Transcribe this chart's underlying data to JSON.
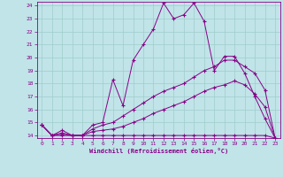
{
  "xlabel": "Windchill (Refroidissement éolien,°C)",
  "background_color": "#c0e4e8",
  "grid_color": "#a0cccc",
  "line_color": "#880088",
  "xlim": [
    -0.5,
    23.5
  ],
  "ylim": [
    13.8,
    24.3
  ],
  "yticks": [
    14,
    15,
    16,
    17,
    18,
    19,
    20,
    21,
    22,
    23,
    24
  ],
  "xticks": [
    0,
    1,
    2,
    3,
    4,
    5,
    6,
    7,
    8,
    9,
    10,
    11,
    12,
    13,
    14,
    15,
    16,
    17,
    18,
    19,
    20,
    21,
    22,
    23
  ],
  "series": [
    {
      "x": [
        0,
        1,
        2,
        3,
        4,
        5,
        6,
        7,
        8,
        9,
        10,
        11,
        12,
        13,
        14,
        15,
        16,
        17,
        18,
        19,
        20,
        21,
        22,
        23
      ],
      "y": [
        14.8,
        14.0,
        14.4,
        14.0,
        14.0,
        14.8,
        15.0,
        18.3,
        16.3,
        19.8,
        21.0,
        22.2,
        24.2,
        23.0,
        23.3,
        24.2,
        22.8,
        19.0,
        20.1,
        20.1,
        18.8,
        17.0,
        15.3,
        13.8
      ]
    },
    {
      "x": [
        0,
        1,
        2,
        3,
        4,
        5,
        6,
        7,
        8,
        9,
        10,
        11,
        12,
        13,
        14,
        15,
        16,
        17,
        18,
        19,
        20,
        21,
        22,
        23
      ],
      "y": [
        14.8,
        14.0,
        14.2,
        14.0,
        14.0,
        14.5,
        14.8,
        15.0,
        15.5,
        16.0,
        16.5,
        17.0,
        17.4,
        17.7,
        18.0,
        18.5,
        19.0,
        19.3,
        19.8,
        19.8,
        19.3,
        18.8,
        17.5,
        13.8
      ]
    },
    {
      "x": [
        0,
        1,
        2,
        3,
        4,
        5,
        6,
        7,
        8,
        9,
        10,
        11,
        12,
        13,
        14,
        15,
        16,
        17,
        18,
        19,
        20,
        21,
        22,
        23
      ],
      "y": [
        14.8,
        14.0,
        14.1,
        14.0,
        14.0,
        14.3,
        14.4,
        14.5,
        14.7,
        15.0,
        15.3,
        15.7,
        16.0,
        16.3,
        16.6,
        17.0,
        17.4,
        17.7,
        17.9,
        18.2,
        17.9,
        17.2,
        16.2,
        13.8
      ]
    },
    {
      "x": [
        0,
        1,
        2,
        3,
        4,
        5,
        6,
        7,
        8,
        9,
        10,
        11,
        12,
        13,
        14,
        15,
        16,
        17,
        18,
        19,
        20,
        21,
        22,
        23
      ],
      "y": [
        14.8,
        14.0,
        14.0,
        14.0,
        14.0,
        14.0,
        14.0,
        14.0,
        14.0,
        14.0,
        14.0,
        14.0,
        14.0,
        14.0,
        14.0,
        14.0,
        14.0,
        14.0,
        14.0,
        14.0,
        14.0,
        14.0,
        14.0,
        13.8
      ]
    }
  ]
}
